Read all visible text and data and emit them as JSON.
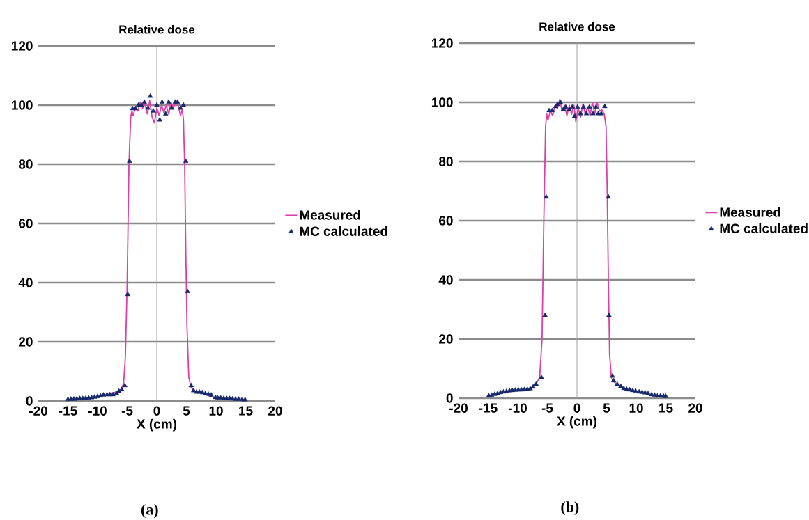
{
  "chart_data": [
    {
      "type": "line",
      "title": "Relative dose",
      "xlabel": "X (cm)",
      "xlim": [
        -20,
        20
      ],
      "ylim": [
        0,
        120
      ],
      "xticks": [
        -20,
        -15,
        -10,
        -5,
        0,
        5,
        10,
        15,
        20
      ],
      "yticks": [
        0,
        20,
        40,
        60,
        80,
        100,
        120
      ],
      "grid": "y",
      "legend": "right",
      "ref_lines": [
        {
          "axis": "x",
          "value": 0,
          "color": "#a0a0a0"
        }
      ],
      "annotations": [
        "(a)"
      ],
      "series": [
        {
          "name": "Measured",
          "type": "line",
          "marker": "none",
          "color": "#dd3fa8",
          "x": [
            -15.5,
            -14,
            -12,
            -10,
            -9,
            -8,
            -7,
            -6,
            -5.6,
            -5.3,
            -5.0,
            -4.7,
            -4.4,
            -4.2,
            -4.0,
            -3.6,
            -3.2,
            -2.8,
            -2.4,
            -2.0,
            -1.6,
            -1.2,
            -0.8,
            -0.4,
            0,
            0.4,
            0.8,
            1.2,
            1.6,
            2.0,
            2.4,
            2.8,
            3.2,
            3.6,
            4.0,
            4.3,
            4.5,
            4.7,
            4.9,
            5.1,
            5.4,
            5.8,
            6.5,
            7.5,
            8.5,
            9.5,
            10.5
          ],
          "values": [
            0.3,
            0.5,
            0.8,
            1.3,
            1.8,
            2.3,
            3,
            4,
            6,
            15,
            40,
            80,
            96,
            98,
            96.5,
            99,
            98,
            101,
            99,
            100.5,
            97,
            101.5,
            96,
            94,
            99,
            96.5,
            100,
            97.5,
            100,
            97,
            101,
            99,
            101.5,
            100,
            96.5,
            98.5,
            95,
            80,
            50,
            25,
            8,
            4.5,
            3.3,
            2.8,
            2,
            1.3,
            1
          ]
        },
        {
          "name": "MC calculated",
          "type": "scatter",
          "marker": "triangle",
          "color": "#14286a",
          "x": [
            -15,
            -14.5,
            -14,
            -13.5,
            -13,
            -12.5,
            -12,
            -11.5,
            -11,
            -10.5,
            -10,
            -9.5,
            -9,
            -8.4,
            -7.9,
            -7.4,
            -6.8,
            -6.4,
            -5.9,
            -5.4,
            -4.9,
            -4.6,
            -4.1,
            -3.6,
            -3.1,
            -2.6,
            -2.1,
            -1.5,
            -1.1,
            -0.6,
            0,
            0.5,
            0.9,
            1.5,
            2.0,
            2.5,
            3.1,
            3.5,
            4.0,
            4.5,
            4.9,
            5.2,
            5.8,
            6.2,
            6.7,
            7.2,
            7.7,
            8.2,
            8.7,
            9.2,
            9.9,
            10.3,
            10.8,
            11.3,
            11.8,
            12.3,
            12.8,
            13.3,
            13.8,
            14.4,
            14.9
          ],
          "values": [
            0.5,
            0.6,
            0.6,
            0.7,
            0.8,
            0.8,
            0.9,
            1,
            1.1,
            1.3,
            1.5,
            1.7,
            2,
            2.1,
            2.1,
            2.1,
            2.6,
            3.3,
            3.8,
            5.2,
            36,
            81,
            98.8,
            98.8,
            100,
            100,
            101,
            99,
            103,
            98,
            100,
            95,
            101,
            97,
            101,
            99,
            101,
            101,
            99,
            100,
            81,
            37,
            5.2,
            3.5,
            3,
            3,
            2.8,
            2.5,
            2.3,
            2,
            1.2,
            1,
            1,
            0.9,
            0.8,
            0.8,
            0.7,
            0.6,
            0.6,
            0.5,
            0.4
          ]
        }
      ]
    },
    {
      "type": "line",
      "title": "Relative dose",
      "xlabel": "X (cm)",
      "xlim": [
        -20,
        20
      ],
      "ylim": [
        0,
        120
      ],
      "xticks": [
        -20,
        -15,
        -10,
        -5,
        0,
        5,
        10,
        15,
        20
      ],
      "yticks": [
        0,
        20,
        40,
        60,
        80,
        100,
        120
      ],
      "grid": "y",
      "legend": "right",
      "ref_lines": [
        {
          "axis": "x",
          "value": 0,
          "color": "#a0a0a0"
        }
      ],
      "annotations": [
        "(b)"
      ],
      "series": [
        {
          "name": "Measured",
          "type": "line",
          "marker": "none",
          "color": "#dd3fa8",
          "x": [
            -8,
            -7,
            -6.3,
            -5.9,
            -5.6,
            -5.3,
            -5.1,
            -4.9,
            -4.5,
            -4.1,
            -3.7,
            -3.3,
            -2.9,
            -2.5,
            -2.1,
            -1.7,
            -1.3,
            -0.9,
            -0.5,
            -0.2,
            0.2,
            0.6,
            1.0,
            1.4,
            1.8,
            2.2,
            2.6,
            3.0,
            3.4,
            3.8,
            4.2,
            4.6,
            4.9,
            5.1,
            5.3,
            5.5,
            5.8,
            6.5,
            7.5,
            9
          ],
          "values": [
            3.2,
            4.5,
            7,
            20,
            60,
            92,
            96,
            94,
            97,
            95.5,
            99,
            98,
            101,
            97,
            99,
            95.5,
            99,
            96,
            99,
            93.5,
            98,
            95,
            99.5,
            96,
            98.5,
            95.5,
            100,
            96,
            100,
            97,
            97.5,
            96,
            92,
            70,
            40,
            15,
            7,
            5,
            3.5,
            2.7
          ]
        },
        {
          "name": "MC calculated",
          "type": "scatter",
          "marker": "triangle",
          "color": "#14286a",
          "x": [
            -14.9,
            -14.4,
            -13.9,
            -13.4,
            -12.9,
            -12.4,
            -11.9,
            -11.4,
            -10.9,
            -10.4,
            -9.9,
            -9.4,
            -8.9,
            -8.4,
            -7.9,
            -7.4,
            -6.9,
            -6.0,
            -5.4,
            -5.2,
            -4.7,
            -4.2,
            -3.6,
            -3.3,
            -2.8,
            -2.3,
            -1.9,
            -1.3,
            -0.8,
            -0.4,
            0.1,
            0.6,
            1.1,
            1.6,
            2.1,
            2.7,
            3.2,
            3.6,
            4.1,
            4.7,
            5.3,
            5.4,
            6.0,
            6.2,
            6.8,
            7.4,
            7.9,
            8.4,
            8.9,
            9.4,
            9.9,
            10.5,
            11.0,
            11.5,
            12.0,
            12.6,
            13.1,
            13.6,
            14.1,
            14.6,
            15.0
          ],
          "values": [
            0.8,
            1,
            1.3,
            1.6,
            1.9,
            2.1,
            2.3,
            2.5,
            2.6,
            2.7,
            2.8,
            2.8,
            2.9,
            3,
            3.2,
            3.8,
            4.7,
            7,
            28,
            68,
            97.2,
            97.2,
            98.6,
            99.3,
            100,
            97.6,
            98.4,
            97.6,
            98.4,
            95.3,
            98.4,
            96.2,
            98.4,
            96.2,
            98.4,
            96.2,
            98.4,
            96.2,
            96.2,
            98.6,
            68,
            28,
            7.5,
            5.9,
            4.7,
            4,
            3.3,
            3,
            2.8,
            2.6,
            2.4,
            2.1,
            2,
            1.8,
            1.6,
            1.2,
            1,
            0.8,
            0.8,
            0.7,
            0.6
          ]
        }
      ]
    }
  ]
}
